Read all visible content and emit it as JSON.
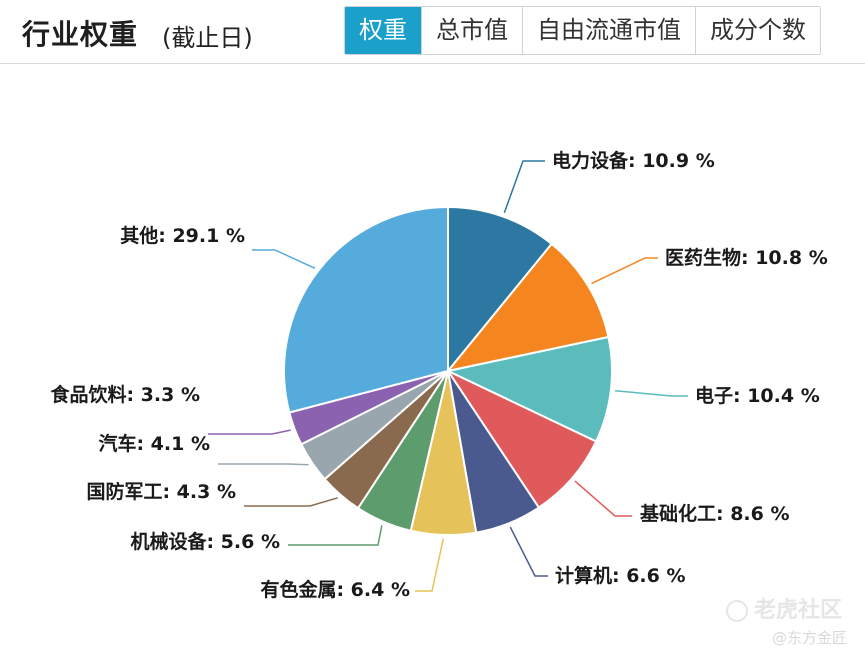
{
  "header": {
    "title": "行业权重",
    "subtitle": "(截止日)",
    "tabs": [
      {
        "label": "权重",
        "active": true
      },
      {
        "label": "总市值",
        "active": false
      },
      {
        "label": "自由流通市值",
        "active": false
      },
      {
        "label": "成分个数",
        "active": false
      }
    ]
  },
  "chart_data": {
    "type": "pie",
    "unit": "%",
    "slices": [
      {
        "name": "电力设备",
        "value": 10.9,
        "color": "#2c78a2"
      },
      {
        "name": "医药生物",
        "value": 10.8,
        "color": "#f5861f"
      },
      {
        "name": "电子",
        "value": 10.4,
        "color": "#5cbcbb"
      },
      {
        "name": "基础化工",
        "value": 8.6,
        "color": "#e05a5c"
      },
      {
        "name": "计算机",
        "value": 6.6,
        "color": "#4a5a8e"
      },
      {
        "name": "有色金属",
        "value": 6.4,
        "color": "#e6c25a"
      },
      {
        "name": "机械设备",
        "value": 5.6,
        "color": "#5d9c6c"
      },
      {
        "name": "国防军工",
        "value": 4.3,
        "color": "#8a6a4e"
      },
      {
        "name": "汽车",
        "value": 4.1,
        "color": "#9aa6ae"
      },
      {
        "name": "食品饮料",
        "value": 3.3,
        "color": "#8a62b0"
      },
      {
        "name": "其他",
        "value": 29.1,
        "color": "#55acdc"
      }
    ]
  },
  "watermark": {
    "main": "老虎社区",
    "sub": "@东方金匠"
  }
}
